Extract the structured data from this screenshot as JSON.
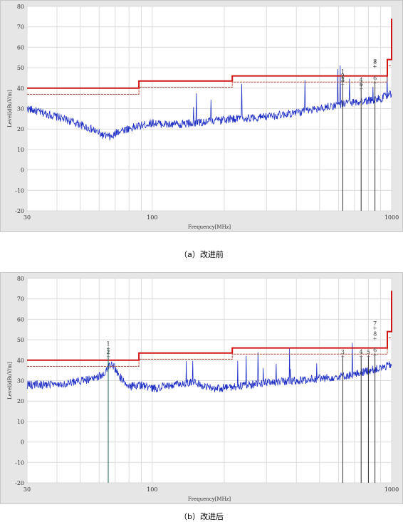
{
  "chart_data": [
    {
      "type": "line",
      "caption": "（a）改进前",
      "ylabel": "Level[dBuV/m]",
      "xlabel": "Frequency[MHz]",
      "xscale": "log",
      "xlim": [
        30,
        1000
      ],
      "ylim": [
        -20,
        80
      ],
      "y_ticks": [
        "80",
        "70",
        "60",
        "50",
        "40",
        "30",
        "20",
        "10",
        "0",
        "-10",
        "-20"
      ],
      "x_ticks": [
        "30",
        "100",
        "1000"
      ],
      "grid": true,
      "limit_line": {
        "x": [
          30,
          88,
          88,
          216,
          216,
          960,
          960,
          1000,
          1000
        ],
        "y": [
          40,
          40,
          43.5,
          43.5,
          46,
          46,
          54,
          54,
          74
        ]
      },
      "margin_line": {
        "x": [
          30,
          88,
          88,
          216,
          216,
          960,
          960,
          1000
        ],
        "y": [
          37,
          37,
          40.5,
          40.5,
          43,
          43,
          51,
          51
        ]
      },
      "noise_floor": {
        "x": [
          30,
          40,
          48,
          58,
          62,
          68,
          72,
          85,
          100,
          120,
          150,
          180,
          220,
          300,
          400,
          500,
          600,
          700,
          800,
          900,
          1000
        ],
        "y": [
          30,
          26,
          23,
          19,
          17,
          16,
          19,
          21,
          23,
          22,
          23,
          24,
          25,
          26,
          28,
          30,
          32,
          33,
          34,
          35,
          37
        ]
      },
      "markers": [
        {
          "label": "1",
          "freq": 625,
          "level": 47
        },
        {
          "label": "2",
          "freq": 625,
          "level": 45
        },
        {
          "label": "3",
          "freq": 625,
          "level": 43
        },
        {
          "label": "4",
          "freq": 746,
          "level": 43
        },
        {
          "label": "5",
          "freq": 746,
          "level": 41
        },
        {
          "label": "6",
          "freq": 852,
          "level": 44
        },
        {
          "label": "7",
          "freq": 852,
          "level": 52
        },
        {
          "label": "8",
          "freq": 852,
          "level": 52
        }
      ]
    },
    {
      "type": "line",
      "caption": "（b）改进后",
      "ylabel": "Level[dBuV/m]",
      "xlabel": "Frequency[MHz]",
      "xscale": "log",
      "xlim": [
        30,
        1000
      ],
      "ylim": [
        -20,
        80
      ],
      "y_ticks": [
        "80",
        "70",
        "60",
        "50",
        "40",
        "30",
        "20",
        "10",
        "0",
        "-10",
        "-20"
      ],
      "x_ticks": [
        "30",
        "100",
        "1000"
      ],
      "grid": true,
      "limit_line": {
        "x": [
          30,
          88,
          88,
          216,
          216,
          960,
          960,
          1000,
          1000
        ],
        "y": [
          40,
          40,
          43.5,
          43.5,
          46,
          46,
          54,
          54,
          74
        ]
      },
      "margin_line": {
        "x": [
          30,
          88,
          88,
          216,
          216,
          960,
          960,
          1000
        ],
        "y": [
          37,
          37,
          40.5,
          40.5,
          43,
          43,
          51,
          51
        ]
      },
      "noise_floor": {
        "x": [
          30,
          40,
          50,
          58,
          64,
          67,
          70,
          75,
          80,
          90,
          100,
          120,
          150,
          180,
          220,
          300,
          400,
          500,
          600,
          700,
          800,
          900,
          1000
        ],
        "y": [
          28,
          28,
          30,
          31,
          34,
          38,
          36,
          30,
          27,
          28,
          26,
          28,
          29,
          26,
          27,
          29,
          30,
          31,
          32,
          33,
          35,
          36,
          38
        ]
      },
      "markers": [
        {
          "label": "1",
          "freq": 65.5,
          "level": 47
        },
        {
          "label": "2",
          "freq": 65.5,
          "level": 43
        },
        {
          "label": "3",
          "freq": 625,
          "level": 43
        },
        {
          "label": "4",
          "freq": 746,
          "level": 43
        },
        {
          "label": "5",
          "freq": 800,
          "level": 43
        },
        {
          "label": "6",
          "freq": 852,
          "level": 44
        },
        {
          "label": "7",
          "freq": 852,
          "level": 57
        },
        {
          "label": "8",
          "freq": 852,
          "level": 52
        }
      ]
    }
  ]
}
